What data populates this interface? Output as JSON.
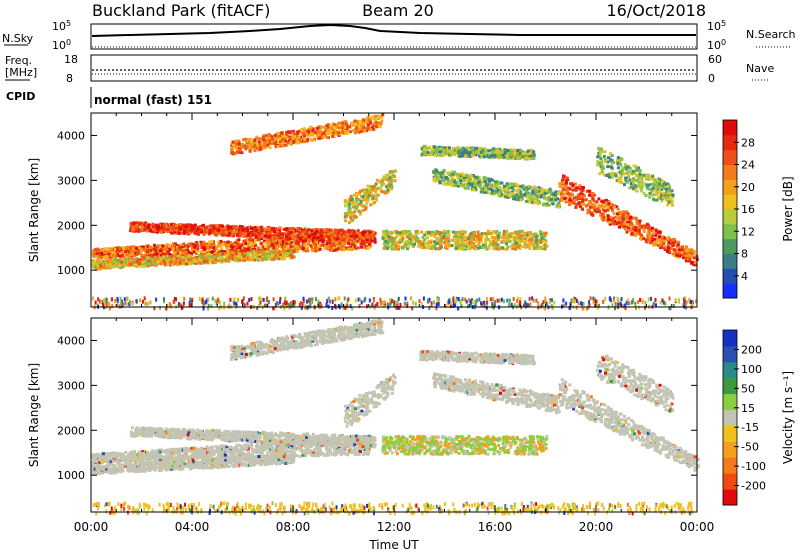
{
  "header": {
    "site": "Buckland Park (fitACF)",
    "beam": "Beam 20",
    "date": "16/Oct/2018"
  },
  "summary_panel": {
    "nsky_label": "N.Sky",
    "nsky_ticks": [
      "10^5",
      "10^0"
    ],
    "nsearch_label": "N.Search",
    "freq_label_line1": "Freq.",
    "freq_label_line2": "[MHz]",
    "freq_ticks": [
      "18",
      "8"
    ],
    "nave_label": "Nave",
    "nave_ticks": [
      "60",
      "0"
    ],
    "cpid_label": "CPID",
    "cpid_text": "normal (fast) 151"
  },
  "chart_data": [
    {
      "type": "heatmap",
      "name": "power",
      "ylabel": "Slant Range [km]",
      "yticks": [
        1000,
        2000,
        3000,
        4000
      ],
      "ylim": [
        180,
        4500
      ],
      "xlim": [
        0,
        24
      ],
      "colorbar_label": "Power [dB]",
      "colorbar_ticks": [
        "4",
        "8",
        "12",
        "16",
        "20",
        "24",
        "28"
      ],
      "colorbar_colors": [
        "#1430ff",
        "#234eb0",
        "#3b7e8a",
        "#4f9a60",
        "#7fc04a",
        "#b8cc3c",
        "#f0c020",
        "#f4a01c",
        "#f47a1a",
        "#ee4e18",
        "#e62a12",
        "#e00a0a"
      ]
    },
    {
      "type": "heatmap",
      "name": "velocity",
      "ylabel": "Slant Range [km]",
      "yticks": [
        1000,
        2000,
        3000,
        4000
      ],
      "ylim": [
        180,
        4500
      ],
      "xlim": [
        0,
        24
      ],
      "colorbar_label": "Velocity [m s⁻¹]",
      "colorbar_ticks": [
        "-200",
        "-100",
        "-50",
        "-15",
        "15",
        "50",
        "100",
        "200"
      ],
      "colorbar_colors": [
        "#e00a0a",
        "#f04a10",
        "#f47a1a",
        "#f4a01c",
        "#f0c020",
        "#c4c4b4",
        "#88d040",
        "#3c9a3c",
        "#2a8a8a",
        "#2a50b0",
        "#1630c0"
      ]
    }
  ],
  "x_axis": {
    "ticks": [
      "00:00",
      "04:00",
      "08:00",
      "12:00",
      "16:00",
      "20:00",
      "00:00"
    ],
    "label": "Time UT"
  }
}
